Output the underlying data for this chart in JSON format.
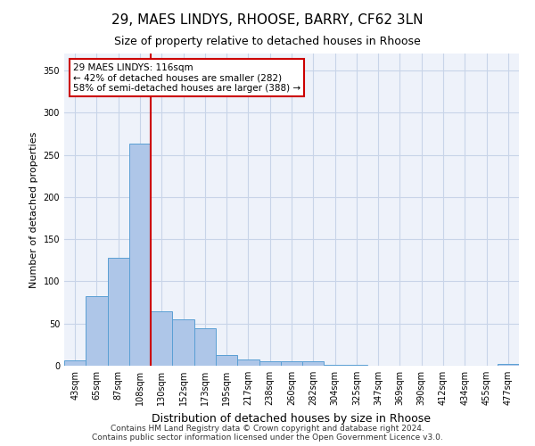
{
  "title_line1": "29, MAES LINDYS, RHOOSE, BARRY, CF62 3LN",
  "title_line2": "Size of property relative to detached houses in Rhoose",
  "xlabel": "Distribution of detached houses by size in Rhoose",
  "ylabel": "Number of detached properties",
  "categories": [
    "43sqm",
    "65sqm",
    "87sqm",
    "108sqm",
    "130sqm",
    "152sqm",
    "173sqm",
    "195sqm",
    "217sqm",
    "238sqm",
    "260sqm",
    "282sqm",
    "304sqm",
    "325sqm",
    "347sqm",
    "369sqm",
    "390sqm",
    "412sqm",
    "434sqm",
    "455sqm",
    "477sqm"
  ],
  "values": [
    6,
    82,
    128,
    263,
    65,
    55,
    44,
    13,
    7,
    5,
    5,
    5,
    1,
    1,
    0,
    0,
    0,
    0,
    0,
    0,
    2
  ],
  "bar_color": "#aec6e8",
  "bar_edge_color": "#5a9fd4",
  "grid_color": "#c8d4e8",
  "vline_color": "#cc0000",
  "vline_x": 3.5,
  "annotation_text": "29 MAES LINDYS: 116sqm\n← 42% of detached houses are smaller (282)\n58% of semi-detached houses are larger (388) →",
  "annotation_box_color": "#ffffff",
  "annotation_box_edge": "#cc0000",
  "ylim": [
    0,
    370
  ],
  "yticks": [
    0,
    50,
    100,
    150,
    200,
    250,
    300,
    350
  ],
  "footer": "Contains HM Land Registry data © Crown copyright and database right 2024.\nContains public sector information licensed under the Open Government Licence v3.0.",
  "bg_color": "#eef2fa",
  "title1_fontsize": 11,
  "title2_fontsize": 9,
  "xlabel_fontsize": 9,
  "ylabel_fontsize": 8,
  "tick_fontsize": 7,
  "footer_fontsize": 6.5,
  "annot_fontsize": 7.5
}
